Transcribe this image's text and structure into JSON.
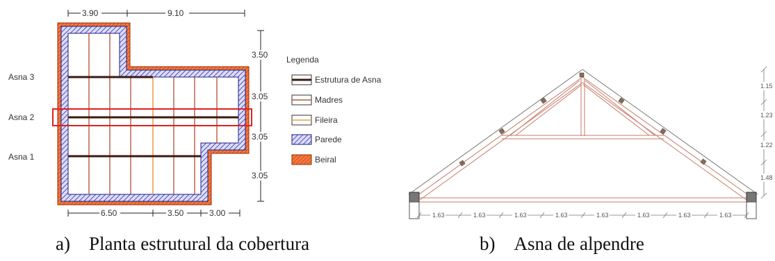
{
  "plan": {
    "top_dims": [
      "3.90",
      "9.10"
    ],
    "bottom_dims": [
      "6.50",
      "3.50",
      "3.00"
    ],
    "right_dims": [
      "3.50",
      "3.05",
      "3.05",
      "3.05"
    ],
    "asna_labels": [
      "Asna 3",
      "Asna 2",
      "Asna 1"
    ],
    "legend": {
      "title": "Legenda",
      "items": [
        {
          "label": "Estrutura de Asna",
          "icon": "truss-line-icon"
        },
        {
          "label": "Madres",
          "icon": "purlin-line-icon"
        },
        {
          "label": "Fileira",
          "icon": "ridge-line-icon"
        },
        {
          "label": "Parede",
          "icon": "wall-hatch-icon"
        },
        {
          "label": "Beiral",
          "icon": "eave-hatch-icon"
        }
      ]
    },
    "colors": {
      "truss": "#3b1a10",
      "purlin": "#b55a3c",
      "ridge": "#e8a04a",
      "wall": "#2b2bbf",
      "eave": "#e8531f",
      "highlight": "#e02020"
    }
  },
  "truss": {
    "bottom_dims": [
      "1.63",
      "1.63",
      "1.63",
      "1.63",
      "1.63",
      "1.63",
      "1.63",
      "1.63"
    ],
    "side_dims": [
      "1.15",
      "1.23",
      "1.22",
      "1.48"
    ]
  },
  "captions": {
    "a": "a) Planta estrutural da cobertura",
    "b": "b) Asna de alpendre"
  }
}
